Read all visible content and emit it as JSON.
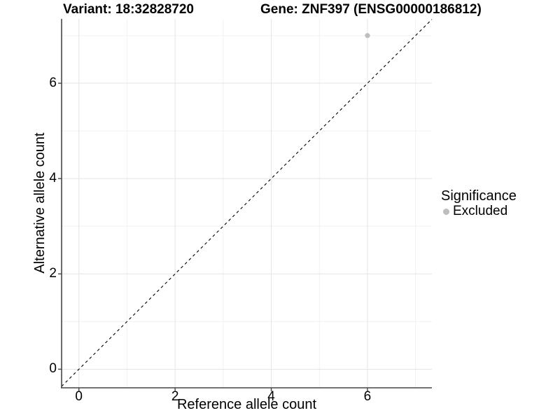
{
  "chart_data": {
    "type": "scatter",
    "title_left": "Variant: 18:32828720",
    "title_right": "Gene: ZNF397 (ENSG00000186812)",
    "xlabel": "Reference allele count",
    "ylabel": "Alternative allele count",
    "xlim": [
      -0.36,
      7.34
    ],
    "ylim": [
      -0.39,
      7.35
    ],
    "xticks": [
      0,
      2,
      4,
      6
    ],
    "yticks": [
      0,
      2,
      4,
      6
    ],
    "xminor": [
      1,
      3,
      5,
      7
    ],
    "yminor": [
      1,
      3,
      5,
      7
    ],
    "grid": "major+minor",
    "reference_line": {
      "slope": 1,
      "intercept": 0,
      "style": "dashed",
      "color": "#000000"
    },
    "series": [
      {
        "name": "Excluded",
        "marker": "circle",
        "color": "#bebebe",
        "points": [
          [
            6,
            7
          ]
        ]
      }
    ],
    "legend": {
      "position": "right",
      "title": "Significance",
      "items": [
        {
          "label": "Excluded",
          "color": "#bebebe"
        }
      ]
    },
    "colors": {
      "axis": "#464646",
      "grid_major": "#e4e4e4",
      "grid_minor": "#f1f1f1",
      "text": "#000000",
      "background": "#ffffff"
    }
  }
}
